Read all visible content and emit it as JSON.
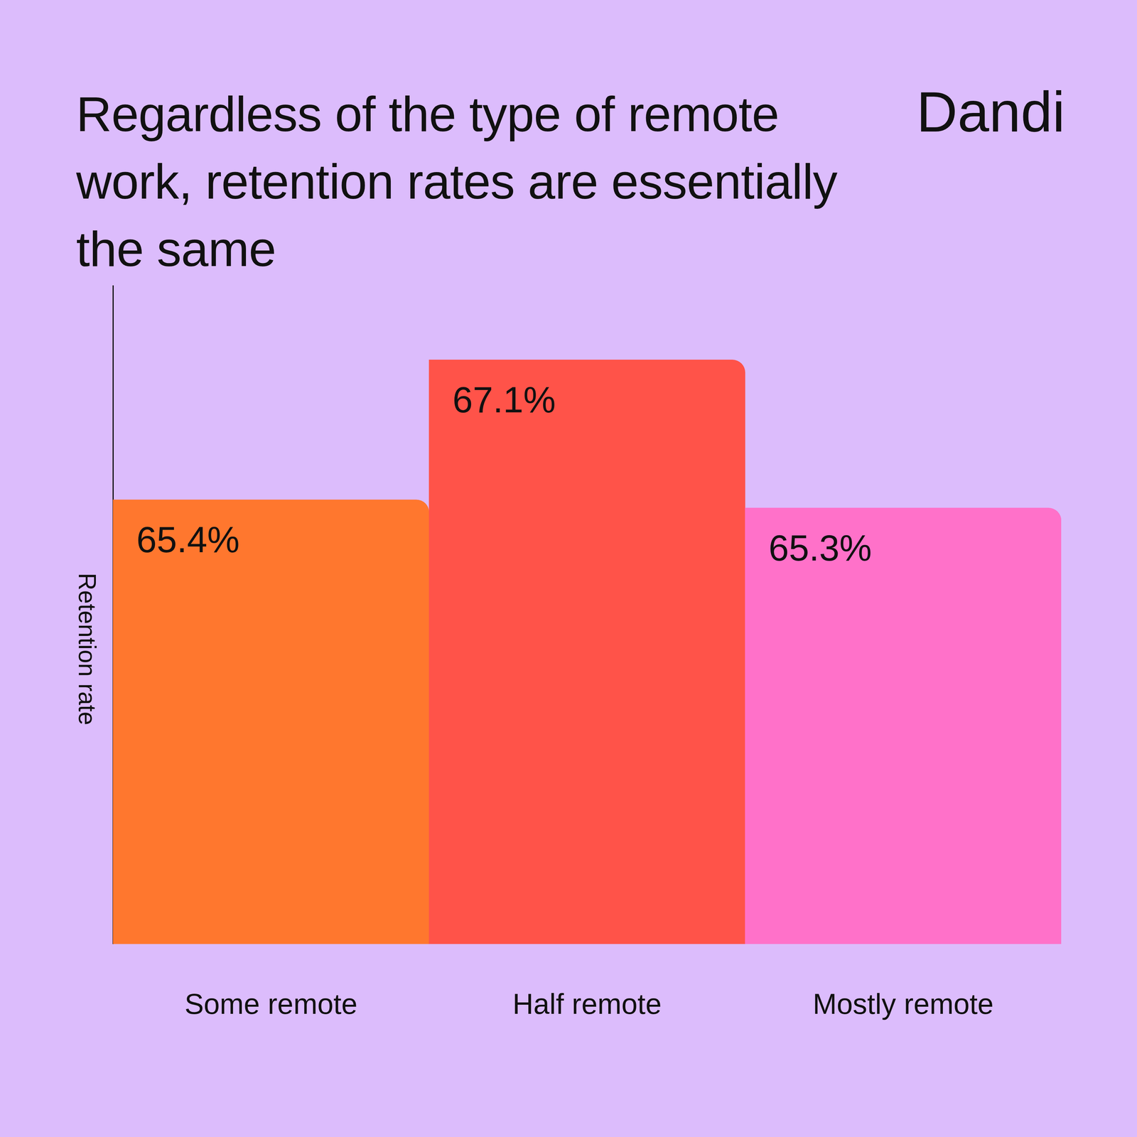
{
  "chart_data": {
    "type": "bar",
    "title": "Regardless of the type of remote work, retention rates are essentially the same",
    "logo": "Dandi",
    "y_label": "Retention rate",
    "categories": [
      "Some remote",
      "Half remote",
      "Mostly remote"
    ],
    "values": [
      65.4,
      67.1,
      65.3
    ],
    "value_labels": [
      "65.4%",
      "67.1%",
      "65.3%"
    ],
    "colors": [
      "#ff772e",
      "#ff5349",
      "#ff71c9"
    ],
    "ylim": [
      60,
      68
    ],
    "grid": false,
    "data_labels": true,
    "tick_labels": "x"
  }
}
